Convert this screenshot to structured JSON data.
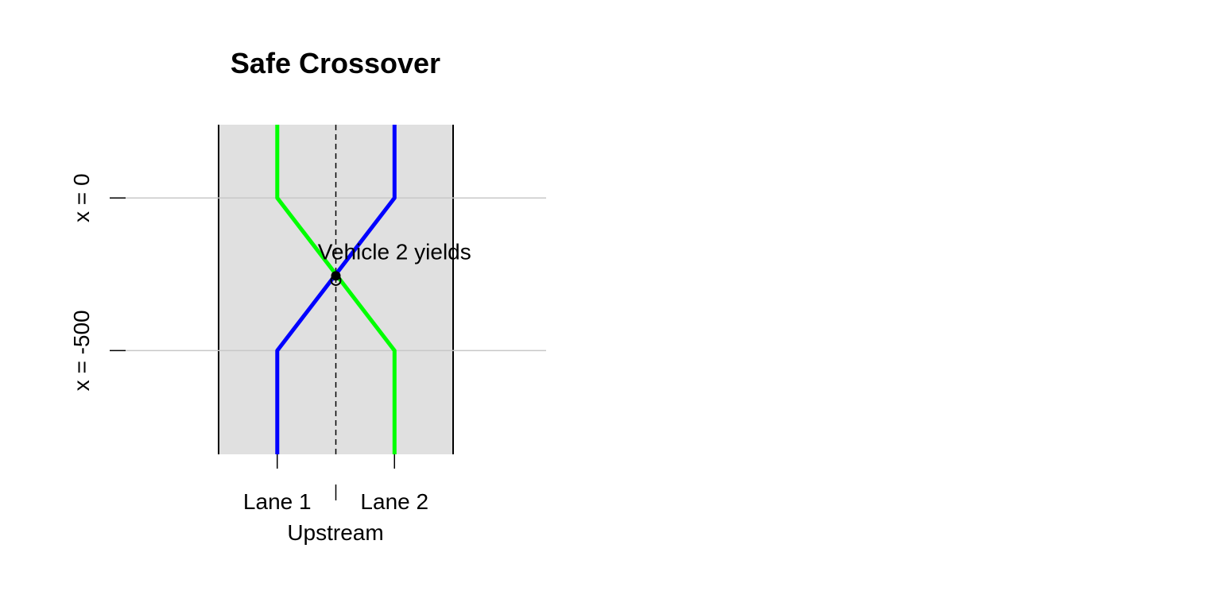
{
  "chart_data": {
    "type": "line",
    "title": "Safe Crossover",
    "xlabel": "Upstream",
    "x_ticks": [
      {
        "value": 1,
        "label": "Lane 1"
      },
      {
        "value": 2,
        "label": "Lane 2"
      }
    ],
    "y_ticks": [
      {
        "value": 0,
        "label": "x = 0"
      },
      {
        "value": -500,
        "label": "x = -500"
      }
    ],
    "xlim": [
      0.5,
      2.5
    ],
    "ylim": [
      -840,
      240
    ],
    "road_background": "#e0e0e0",
    "series": [
      {
        "color": "#0000ff",
        "points": [
          [
            1,
            -840
          ],
          [
            1,
            -500
          ],
          [
            2,
            0
          ],
          [
            2,
            240
          ]
        ]
      },
      {
        "color": "#00ff00",
        "points": [
          [
            2,
            -840
          ],
          [
            2,
            -500
          ],
          [
            1,
            0
          ],
          [
            1,
            240
          ]
        ]
      }
    ],
    "annotations": [
      {
        "text": "Vehicle 2 yields",
        "x": 2,
        "y": -175
      }
    ],
    "markers": [
      {
        "shape": "filled-circle",
        "x": 1.5,
        "y": -255
      },
      {
        "shape": "open-circle",
        "x": 1.5,
        "y": -270
      }
    ],
    "center_line": {
      "x": 1.5,
      "style": "dashed"
    },
    "grid": "horizontal at y ticks"
  }
}
